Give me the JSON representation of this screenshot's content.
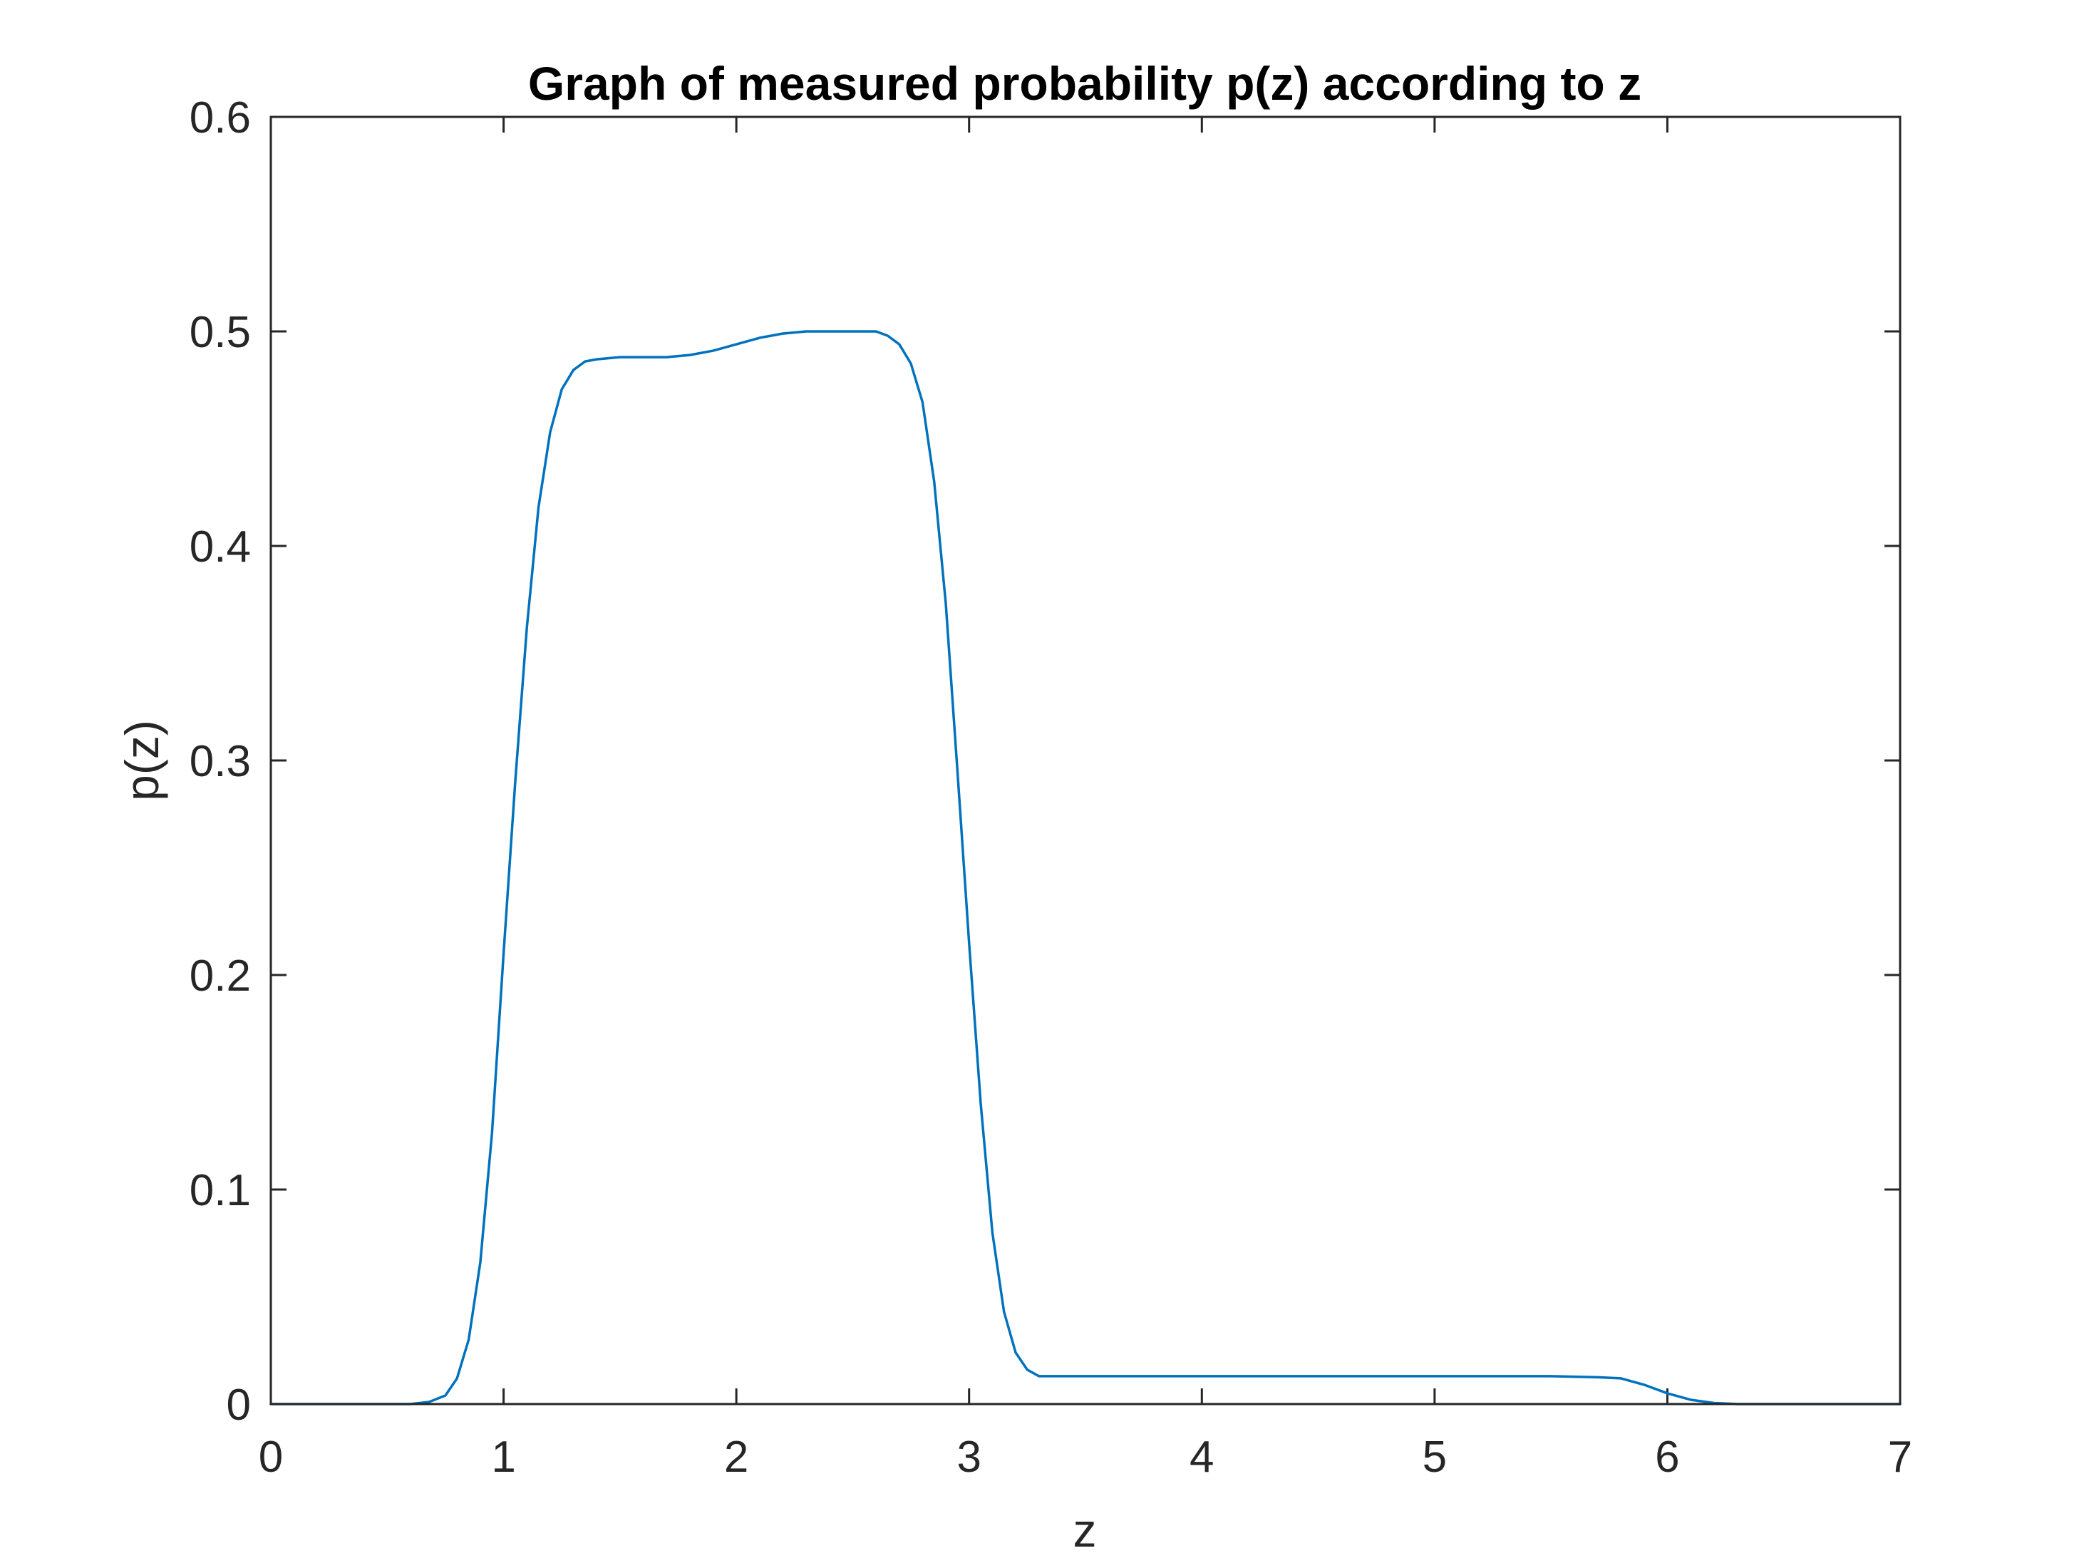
{
  "chart_data": {
    "type": "line",
    "title": "Graph of measured probability p(z) according to z",
    "xlabel": "z",
    "ylabel": "p(z)",
    "xlim": [
      0,
      7
    ],
    "ylim": [
      0,
      0.6
    ],
    "x_ticks": [
      0,
      1,
      2,
      3,
      4,
      5,
      6,
      7
    ],
    "y_ticks": [
      0,
      0.1,
      0.2,
      0.3,
      0.4,
      0.5,
      0.6
    ],
    "x_tick_labels": [
      "0",
      "1",
      "2",
      "3",
      "4",
      "5",
      "6",
      "7"
    ],
    "y_tick_labels": [
      "0",
      "0.1",
      "0.2",
      "0.3",
      "0.4",
      "0.5",
      "0.6"
    ],
    "grid": false,
    "line_color": "#0072BD",
    "series": [
      {
        "x": [
          0,
          0.3,
          0.6,
          0.68,
          0.75,
          0.8,
          0.85,
          0.9,
          0.95,
          1.0,
          1.05,
          1.1,
          1.15,
          1.2,
          1.25,
          1.3,
          1.35,
          1.4,
          1.5,
          1.6,
          1.7,
          1.8,
          1.9,
          2.0,
          2.1,
          2.2,
          2.3,
          2.4,
          2.5,
          2.6,
          2.65,
          2.7,
          2.75,
          2.8,
          2.85,
          2.9,
          2.95,
          3.0,
          3.05,
          3.1,
          3.15,
          3.2,
          3.25,
          3.3,
          3.4,
          3.6,
          4.0,
          4.5,
          5.0,
          5.5,
          5.7,
          5.8,
          5.9,
          6.0,
          6.1,
          6.2,
          6.3,
          6.5,
          7.0
        ],
        "y": [
          0,
          0,
          0,
          0.001,
          0.004,
          0.012,
          0.03,
          0.066,
          0.126,
          0.21,
          0.29,
          0.362,
          0.418,
          0.453,
          0.473,
          0.482,
          0.486,
          0.487,
          0.488,
          0.488,
          0.488,
          0.489,
          0.491,
          0.494,
          0.497,
          0.499,
          0.5,
          0.5,
          0.5,
          0.5,
          0.498,
          0.494,
          0.485,
          0.467,
          0.43,
          0.373,
          0.295,
          0.215,
          0.14,
          0.08,
          0.043,
          0.024,
          0.016,
          0.013,
          0.013,
          0.013,
          0.013,
          0.013,
          0.013,
          0.013,
          0.0125,
          0.012,
          0.009,
          0.005,
          0.002,
          0.0005,
          0,
          0,
          0
        ]
      }
    ]
  }
}
